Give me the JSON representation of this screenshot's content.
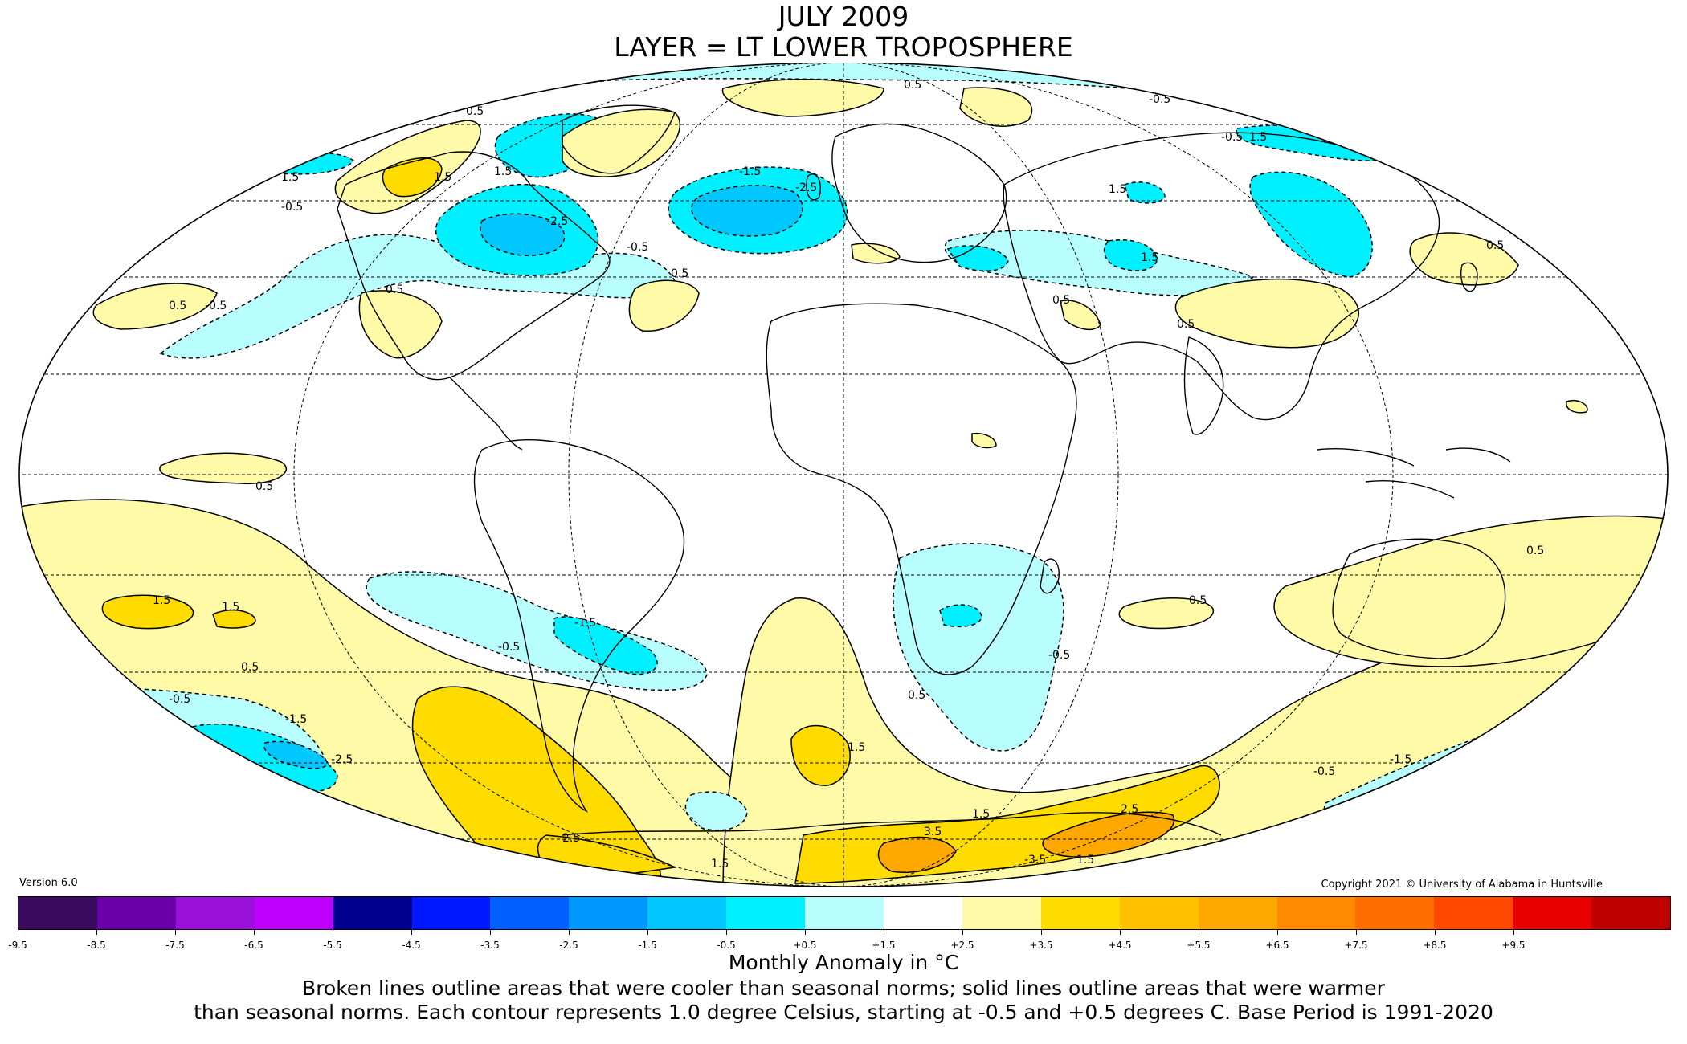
{
  "title": {
    "line1": "JULY 2009",
    "line2": "LAYER = LT LOWER TROPOSPHERE"
  },
  "footer": {
    "version": "Version 6.0",
    "copyright": "Copyright 2021 © University of Alabama in Huntsville",
    "units": "Monthly Anomaly in °C",
    "note_line1": "Broken lines outline areas that were cooler than seasonal norms; solid lines outline areas that were warmer",
    "note_line2": "than seasonal norms. Each contour represents 1.0 degree Celsius, starting at -0.5 and +0.5 degrees C. Base Period is 1991-2020"
  },
  "colorbar": {
    "colors": [
      "#3a0a5e",
      "#6a00a8",
      "#9a10d8",
      "#c000ff",
      "#00008e",
      "#0018ff",
      "#0060ff",
      "#0098ff",
      "#00c8ff",
      "#00f0ff",
      "#b8feff",
      "#ffffff",
      "#fffaa8",
      "#ffdc00",
      "#ffc000",
      "#ffa800",
      "#ff8a00",
      "#ff6e00",
      "#ff4800",
      "#e80000",
      "#c00000"
    ],
    "tick_labels": [
      "-9.5",
      "-8.5",
      "-7.5",
      "-6.5",
      "-5.5",
      "-4.5",
      "-3.5",
      "-2.5",
      "-1.5",
      "-0.5",
      "+0.5",
      "+1.5",
      "+2.5",
      "+3.5",
      "+4.5",
      "+5.5",
      "+6.5",
      "+7.5",
      "+8.5",
      "+9.5"
    ]
  },
  "map": {
    "projection": "Mollweide",
    "contour_labels": [
      "0.5",
      "-0.5",
      "1.5",
      "-1.5",
      "-2.5",
      "2.5",
      "3.5",
      "-3.5"
    ]
  }
}
